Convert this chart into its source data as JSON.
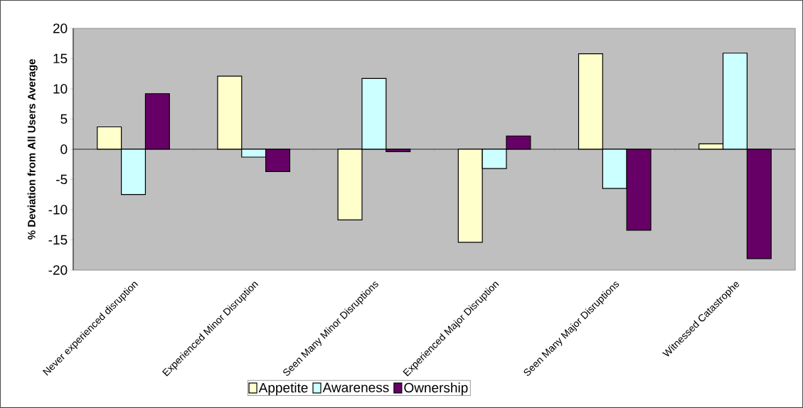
{
  "chart_data": {
    "type": "bar",
    "ylabel": "% Deviation from All Users Average",
    "categories": [
      "Never experienced disruption",
      "Experienced Minor Disruption",
      "Seen Many Minor Disruptions",
      "Experienced Major Disruption",
      "Seen Many Major Disruptions",
      "Witnessed Catastrophe"
    ],
    "series": [
      {
        "name": "Appetite",
        "color": "#ffffcc",
        "values": [
          3.7,
          12.1,
          -11.7,
          -15.4,
          15.8,
          0.9
        ]
      },
      {
        "name": "Awareness",
        "color": "#ccffff",
        "values": [
          -7.5,
          -1.3,
          11.7,
          -3.2,
          -6.5,
          15.9
        ]
      },
      {
        "name": "Ownership",
        "color": "#660066",
        "values": [
          9.2,
          -3.7,
          -0.4,
          2.2,
          -13.4,
          -18.1
        ]
      }
    ],
    "ylim": [
      -20,
      20
    ],
    "yticks": [
      -20,
      -15,
      -10,
      -5,
      0,
      5,
      10,
      15,
      20
    ],
    "legend": "bottom"
  }
}
